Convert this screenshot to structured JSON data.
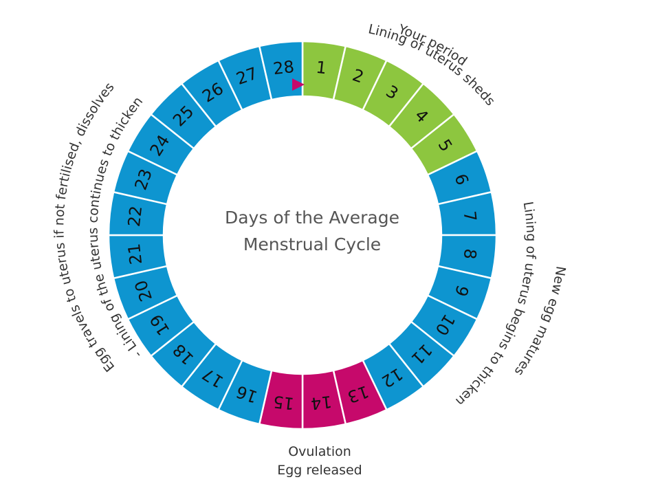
{
  "title": {
    "line1": "Days of the Average",
    "line2": "Menstrual Cycle"
  },
  "colors": {
    "period": "#8dc63f",
    "ovulation": "#c6096b",
    "default": "#0e95d0",
    "marker": "#c6096b",
    "divider": "#ffffff"
  },
  "days": [
    {
      "label": "1",
      "phase": "period"
    },
    {
      "label": "2",
      "phase": "period"
    },
    {
      "label": "3",
      "phase": "period"
    },
    {
      "label": "4",
      "phase": "period"
    },
    {
      "label": "5",
      "phase": "period"
    },
    {
      "label": "6",
      "phase": "default"
    },
    {
      "label": "7",
      "phase": "default"
    },
    {
      "label": "8",
      "phase": "default"
    },
    {
      "label": "9",
      "phase": "default"
    },
    {
      "label": "10",
      "phase": "default"
    },
    {
      "label": "11",
      "phase": "default"
    },
    {
      "label": "12",
      "phase": "default"
    },
    {
      "label": "13",
      "phase": "ovulation"
    },
    {
      "label": "14",
      "phase": "ovulation"
    },
    {
      "label": "15",
      "phase": "ovulation"
    },
    {
      "label": "16",
      "phase": "default"
    },
    {
      "label": "17",
      "phase": "default"
    },
    {
      "label": "18",
      "phase": "default"
    },
    {
      "label": "19",
      "phase": "default"
    },
    {
      "label": "20",
      "phase": "default"
    },
    {
      "label": "21",
      "phase": "default"
    },
    {
      "label": "22",
      "phase": "default"
    },
    {
      "label": "23",
      "phase": "default"
    },
    {
      "label": "24",
      "phase": "default"
    },
    {
      "label": "25",
      "phase": "default"
    },
    {
      "label": "26",
      "phase": "default"
    },
    {
      "label": "27",
      "phase": "default"
    },
    {
      "label": "28",
      "phase": "default"
    }
  ],
  "annotations": {
    "period": [
      "Your period",
      "Lining of uterus sheds"
    ],
    "follicular": [
      "New egg matures",
      "Lining of uterus begins to thicken"
    ],
    "ovulation": [
      "Ovulation",
      "Egg released"
    ],
    "luteal": [
      "Egg travels to uterus if not fertilised, dissolves",
      "- Lining of the uterus continues to thicken"
    ]
  }
}
